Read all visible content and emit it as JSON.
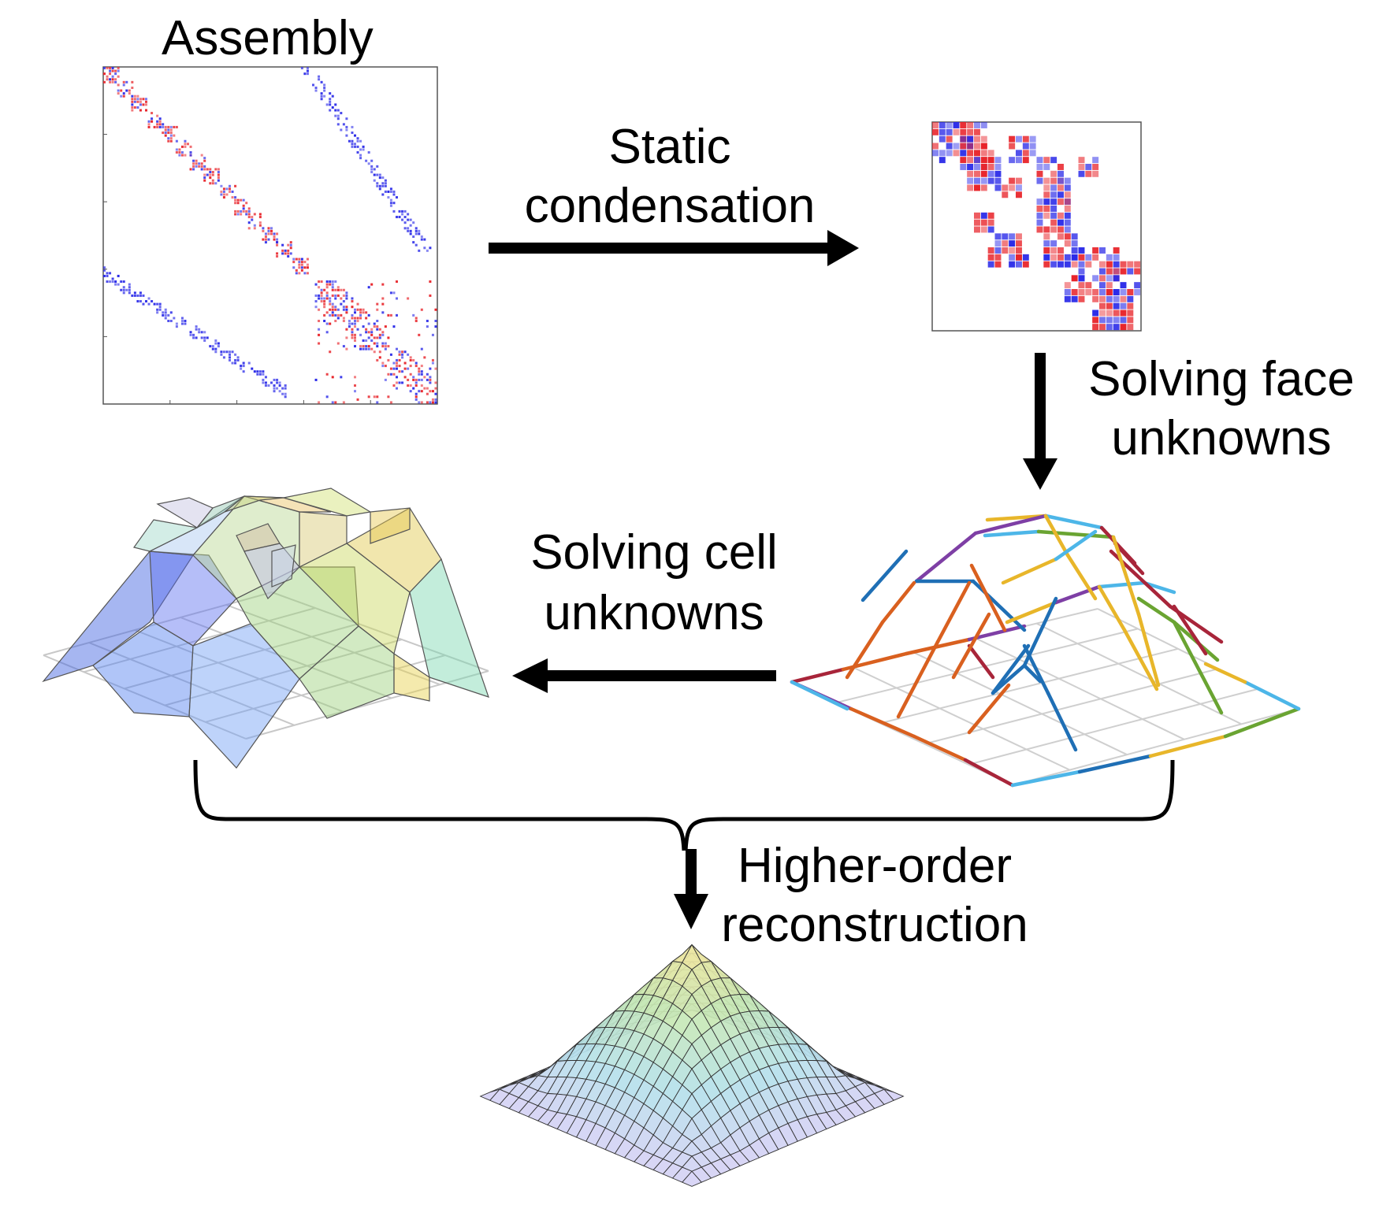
{
  "labels": {
    "assembly": "Assembly",
    "static_1": "Static",
    "static_2": "condensation",
    "face_1": "Solving face",
    "face_2": "unknowns",
    "cell_1": "Solving cell",
    "cell_2": "unknowns",
    "recon_1": "Higher-order",
    "recon_2": "reconstruction"
  },
  "colors": {
    "matrix_red": "#e8242a",
    "matrix_blue": "#2a2ae8",
    "arrow": "#000000",
    "grid": "#c8c8c8"
  }
}
